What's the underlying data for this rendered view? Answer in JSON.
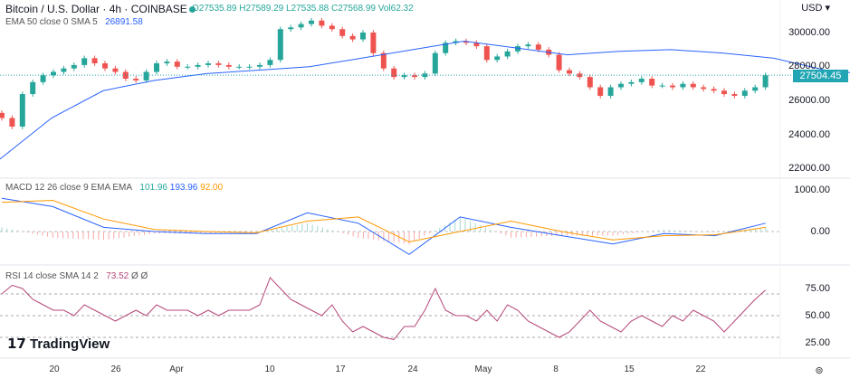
{
  "header": {
    "title": "Bitcoin / U.S. Dollar · 4h · COINBASE",
    "ohlc": "O27535.89 H27589.29 L27535.88 C27568.99 Vol62.32",
    "ema_label": "EMA 50 close 0 SMA 5",
    "ema_value": "26891.58",
    "currency": "USD"
  },
  "macd_legend": {
    "label": "MACD 12 26 close 9 EMA EMA",
    "hist": "101.96",
    "macd": "193.96",
    "signal": "92.00"
  },
  "rsi_legend": {
    "label": "RSI 14 close SMA 14 2",
    "value": "73.52",
    "extra": "Ø Ø"
  },
  "logo": "TradingView",
  "colors": {
    "up": "#26a69a",
    "down": "#ef5350",
    "ema": "#2962ff",
    "macd": "#2962ff",
    "signal": "#ff9800",
    "rsi": "#b5477a",
    "price_label": "#22a6b3"
  },
  "chart_data": [
    {
      "type": "candlestick",
      "title": "Bitcoin / U.S. Dollar · 4h · COINBASE",
      "x_ticks": [
        "20",
        "26",
        "Apr",
        "10",
        "17",
        "24",
        "May",
        "8",
        "15",
        "22"
      ],
      "y_ticks": [
        "30000.00",
        "28000.00",
        "26000.00",
        "24000.00",
        "22000.00"
      ],
      "ylim": [
        21500,
        31000
      ],
      "current_price": "27504.45",
      "daily_close": [
        25000,
        24500,
        26400,
        27100,
        27500,
        27700,
        27900,
        28100,
        28500,
        28200,
        27900,
        27700,
        27300,
        27200,
        27700,
        28200,
        28300,
        28000,
        28000,
        28100,
        28200,
        28100,
        28000,
        28000,
        28000,
        28100,
        28400,
        30200,
        30300,
        30500,
        30700,
        30400,
        30200,
        29800,
        29600,
        30000,
        28800,
        27900,
        27400,
        27500,
        27400,
        27600,
        28800,
        29400,
        29500,
        29400,
        29200,
        28400,
        28600,
        28900,
        29200,
        29300,
        29000,
        28700,
        27800,
        27600,
        27400,
        26800,
        26300,
        26800,
        27000,
        27100,
        27300,
        26900,
        26900,
        26800,
        27000,
        26800,
        26700,
        26600,
        26400,
        26300,
        26600,
        26800,
        27500
      ],
      "ema50_every5": [
        22600,
        25000,
        26600,
        27200,
        27600,
        27800,
        28000,
        28500,
        29000,
        29500,
        29100,
        28700,
        28900,
        29000,
        28800,
        28500,
        27800,
        27500,
        27300,
        27100,
        26900,
        27000
      ]
    },
    {
      "type": "line",
      "title": "MACD 12 26 close 9 EMA EMA",
      "y_ticks": [
        "1000.00",
        "0.00"
      ],
      "ylim": [
        -800,
        1300
      ],
      "macd_every5": [
        800,
        600,
        100,
        0,
        -50,
        -50,
        450,
        200,
        -550,
        350,
        100,
        -100,
        -300,
        -50,
        -100,
        200
      ],
      "signal_every5": [
        700,
        750,
        300,
        50,
        0,
        -30,
        250,
        350,
        -250,
        0,
        250,
        0,
        -200,
        -100,
        -80,
        100
      ]
    },
    {
      "type": "line",
      "title": "RSI 14 close SMA 14 2",
      "y_ticks": [
        "75.00",
        "50.00",
        "25.00"
      ],
      "ylim": [
        15,
        95
      ],
      "bands": [
        70,
        50,
        30
      ],
      "rsi_daily": [
        70,
        78,
        75,
        65,
        60,
        55,
        55,
        50,
        60,
        55,
        50,
        45,
        50,
        55,
        50,
        60,
        55,
        55,
        55,
        50,
        55,
        50,
        55,
        55,
        55,
        60,
        85,
        75,
        65,
        60,
        55,
        50,
        60,
        45,
        35,
        40,
        35,
        30,
        28,
        40,
        40,
        55,
        75,
        55,
        50,
        50,
        45,
        55,
        45,
        60,
        55,
        45,
        40,
        35,
        30,
        35,
        45,
        55,
        45,
        40,
        35,
        45,
        50,
        45,
        40,
        50,
        45,
        55,
        50,
        45,
        35,
        45,
        55,
        65,
        73.5
      ]
    }
  ]
}
